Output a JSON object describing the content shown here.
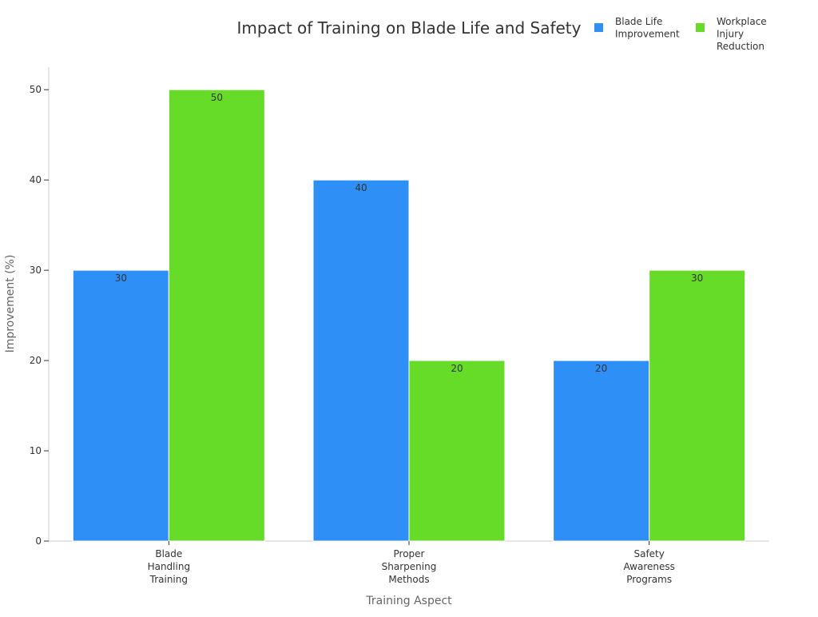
{
  "chart_data": {
    "type": "bar",
    "title": "Impact of Training on Blade Life and Safety",
    "xlabel": "Training Aspect",
    "ylabel": "Improvement (%)",
    "categories": [
      [
        "Blade",
        "Handling",
        "Training"
      ],
      [
        "Proper",
        "Sharpening",
        "Methods"
      ],
      [
        "Safety",
        "Awareness",
        "Programs"
      ]
    ],
    "series": [
      {
        "name": [
          "Blade Life",
          "Improvement"
        ],
        "color": "#2e8ff7",
        "values": [
          30,
          40,
          20
        ]
      },
      {
        "name": [
          "Workplace",
          "Injury",
          "Reduction"
        ],
        "color": "#66db28",
        "values": [
          50,
          20,
          30
        ]
      }
    ],
    "ylim": [
      0,
      52.5
    ],
    "yticks": [
      0,
      10,
      20,
      30,
      40,
      50
    ],
    "grid": false,
    "legend": "top-right",
    "data_labels": true
  }
}
